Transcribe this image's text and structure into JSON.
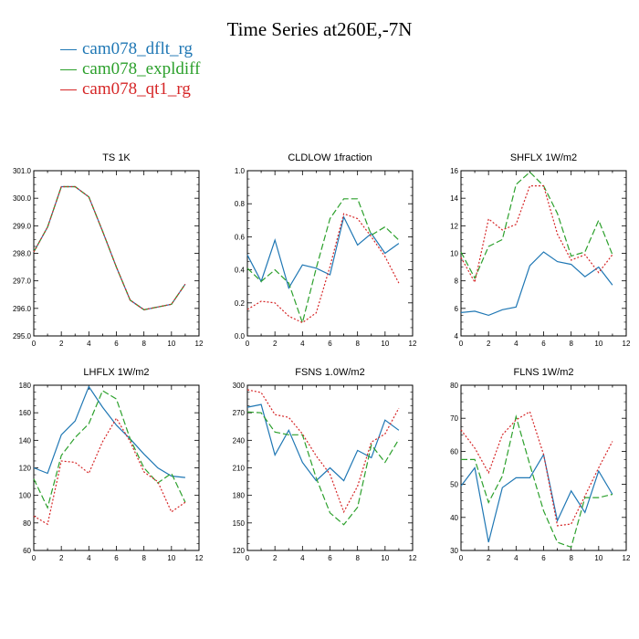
{
  "title": "Time Series at260E,-7N",
  "legend": [
    {
      "name": "cam078_dflt_rg",
      "color": "#1f77b4",
      "dash": "solid"
    },
    {
      "name": "cam078_expldiff",
      "color": "#2ca02c",
      "dash": "longdash"
    },
    {
      "name": "cam078_qt1_rg",
      "color": "#d62728",
      "dash": "dotted"
    }
  ],
  "chart_data": [
    {
      "type": "line",
      "title": "TS  1K",
      "xlim": [
        0,
        12
      ],
      "xticks": [
        0,
        2,
        4,
        6,
        8,
        10,
        12
      ],
      "ylim": [
        295.0,
        301.0
      ],
      "yticks": [
        "295.0",
        "296.0",
        "297.0",
        "298.0",
        "299.0",
        "300.0",
        "301.0"
      ],
      "x": [
        0,
        1,
        2,
        3,
        4,
        5,
        6,
        7,
        8,
        9,
        10,
        11
      ],
      "series": [
        {
          "name": "cam078_dflt_rg",
          "values": [
            298.05,
            298.95,
            300.42,
            300.42,
            300.05,
            298.8,
            297.5,
            296.3,
            295.95,
            296.05,
            296.15,
            296.88
          ]
        },
        {
          "name": "cam078_expldiff",
          "values": [
            298.05,
            298.95,
            300.42,
            300.42,
            300.05,
            298.8,
            297.5,
            296.3,
            295.95,
            296.05,
            296.15,
            296.88
          ]
        },
        {
          "name": "cam078_qt1_rg",
          "values": [
            298.05,
            298.95,
            300.42,
            300.42,
            300.05,
            298.8,
            297.5,
            296.3,
            295.95,
            296.05,
            296.15,
            296.88
          ]
        }
      ]
    },
    {
      "type": "line",
      "title": "CLDLOW  1fraction",
      "xlim": [
        0,
        12
      ],
      "xticks": [
        0,
        2,
        4,
        6,
        8,
        10,
        12
      ],
      "ylim": [
        0.0,
        1.0
      ],
      "yticks": [
        "0.0",
        "0.2",
        "0.4",
        "0.6",
        "0.8",
        "1.0"
      ],
      "x": [
        0,
        1,
        2,
        3,
        4,
        5,
        6,
        7,
        8,
        9,
        10,
        11
      ],
      "series": [
        {
          "name": "cam078_dflt_rg",
          "values": [
            0.49,
            0.33,
            0.58,
            0.29,
            0.43,
            0.41,
            0.37,
            0.72,
            0.55,
            0.62,
            0.5,
            0.56
          ]
        },
        {
          "name": "cam078_expldiff",
          "values": [
            0.41,
            0.33,
            0.4,
            0.32,
            0.08,
            0.41,
            0.71,
            0.83,
            0.83,
            0.61,
            0.66,
            0.58
          ]
        },
        {
          "name": "cam078_qt1_rg",
          "values": [
            0.16,
            0.21,
            0.2,
            0.12,
            0.08,
            0.14,
            0.42,
            0.74,
            0.71,
            0.6,
            0.48,
            0.32
          ]
        }
      ]
    },
    {
      "type": "line",
      "title": "SHFLX  1W/m2",
      "xlim": [
        0,
        12
      ],
      "xticks": [
        0,
        2,
        4,
        6,
        8,
        10,
        12
      ],
      "ylim": [
        4,
        16
      ],
      "yticks": [
        "4",
        "6",
        "8",
        "10",
        "12",
        "14",
        "16"
      ],
      "x": [
        0,
        1,
        2,
        3,
        4,
        5,
        6,
        7,
        8,
        9,
        10,
        11
      ],
      "series": [
        {
          "name": "cam078_dflt_rg",
          "values": [
            5.7,
            5.8,
            5.5,
            5.9,
            6.1,
            9.1,
            10.1,
            9.4,
            9.2,
            8.3,
            9.0,
            7.7
          ]
        },
        {
          "name": "cam078_expldiff",
          "values": [
            10.1,
            8.2,
            10.5,
            11.0,
            15.0,
            15.9,
            14.9,
            12.9,
            9.8,
            10.1,
            12.4,
            9.9
          ]
        },
        {
          "name": "cam078_qt1_rg",
          "values": [
            9.7,
            7.9,
            12.5,
            11.7,
            12.1,
            14.9,
            14.9,
            11.4,
            9.5,
            9.9,
            8.6,
            9.9
          ]
        }
      ]
    },
    {
      "type": "line",
      "title": "LHFLX  1W/m2",
      "xlim": [
        0,
        12
      ],
      "xticks": [
        0,
        2,
        4,
        6,
        8,
        10,
        12
      ],
      "ylim": [
        60,
        180
      ],
      "yticks": [
        "60",
        "80",
        "100",
        "120",
        "140",
        "160",
        "180"
      ],
      "x": [
        0,
        1,
        2,
        3,
        4,
        5,
        6,
        7,
        8,
        9,
        10,
        11
      ],
      "series": [
        {
          "name": "cam078_dflt_rg",
          "values": [
            120,
            116,
            144,
            154,
            179,
            164,
            151,
            141,
            130,
            120,
            114,
            113
          ]
        },
        {
          "name": "cam078_expldiff",
          "values": [
            112,
            91,
            129,
            142,
            152,
            176,
            170,
            141,
            120,
            109,
            116,
            95
          ]
        },
        {
          "name": "cam078_qt1_rg",
          "values": [
            85,
            79,
            125,
            124,
            116,
            139,
            156,
            139,
            117,
            110,
            88,
            95
          ]
        }
      ]
    },
    {
      "type": "line",
      "title": "FSNS  1.0W/m2",
      "xlim": [
        0,
        12
      ],
      "xticks": [
        0,
        2,
        4,
        6,
        8,
        10,
        12
      ],
      "ylim": [
        120,
        300
      ],
      "yticks": [
        "120",
        "150",
        "180",
        "210",
        "240",
        "270",
        "300"
      ],
      "x": [
        0,
        1,
        2,
        3,
        4,
        5,
        6,
        7,
        8,
        9,
        10,
        11
      ],
      "series": [
        {
          "name": "cam078_dflt_rg",
          "values": [
            276,
            279,
            224,
            251,
            216,
            196,
            210,
            196,
            229,
            221,
            262,
            251
          ]
        },
        {
          "name": "cam078_expldiff",
          "values": [
            271,
            270,
            249,
            246,
            246,
            199,
            161,
            148,
            167,
            235,
            216,
            241
          ]
        },
        {
          "name": "cam078_qt1_rg",
          "values": [
            295,
            292,
            268,
            265,
            247,
            223,
            203,
            162,
            190,
            238,
            247,
            275
          ]
        }
      ]
    },
    {
      "type": "line",
      "title": "FLNS  1W/m2",
      "xlim": [
        0,
        12
      ],
      "xticks": [
        0,
        2,
        4,
        6,
        8,
        10,
        12
      ],
      "ylim": [
        30,
        80
      ],
      "yticks": [
        "30",
        "40",
        "50",
        "60",
        "70",
        "80"
      ],
      "x": [
        0,
        1,
        2,
        3,
        4,
        5,
        6,
        7,
        8,
        9,
        10,
        11
      ],
      "series": [
        {
          "name": "cam078_dflt_rg",
          "values": [
            49.5,
            55,
            32.5,
            49,
            52,
            52,
            59,
            39,
            48,
            41.5,
            54,
            47
          ]
        },
        {
          "name": "cam078_expldiff",
          "values": [
            57.5,
            57.5,
            44.5,
            52.5,
            70.5,
            56,
            42,
            32.5,
            31,
            46,
            46,
            47
          ]
        },
        {
          "name": "cam078_qt1_rg",
          "values": [
            66.5,
            61,
            53.5,
            65,
            69.5,
            72,
            59,
            37.5,
            38,
            46.5,
            55,
            63
          ]
        }
      ]
    }
  ]
}
